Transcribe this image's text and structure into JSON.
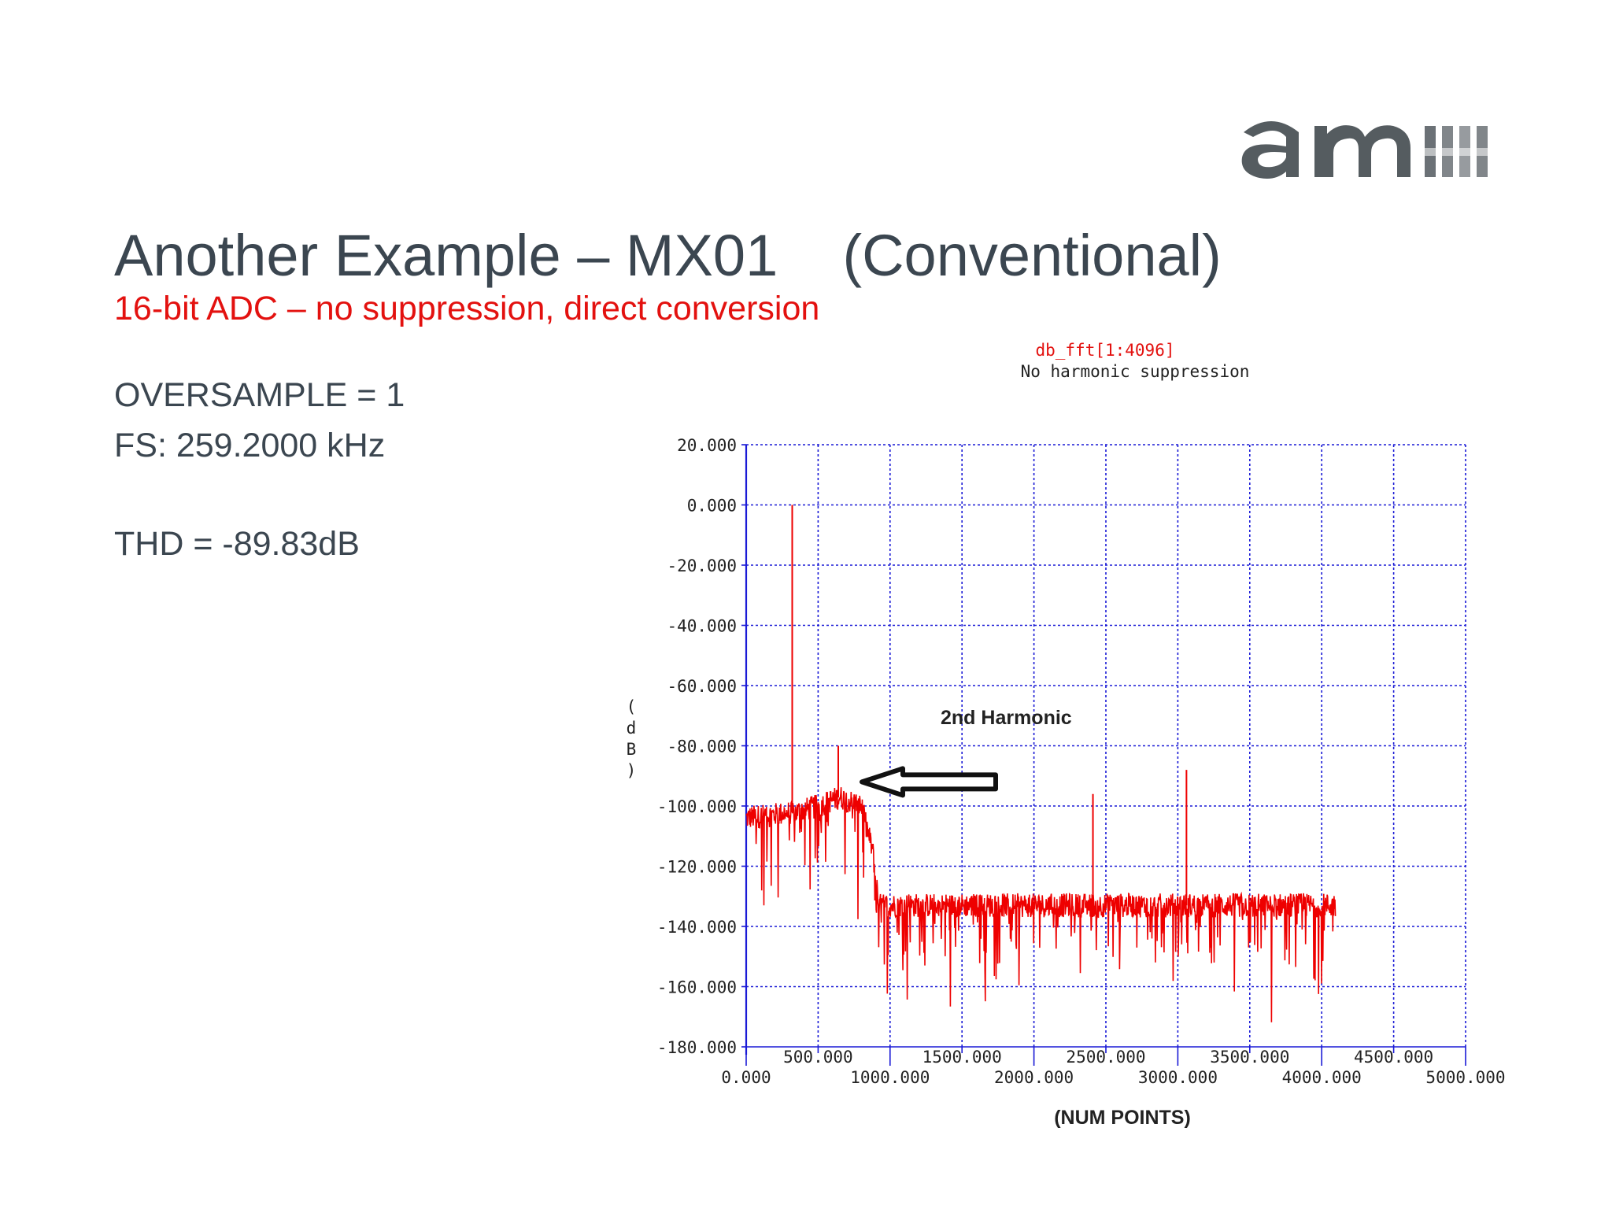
{
  "slide": {
    "title": "Another Example – MX01    (Conventional)",
    "subtitle": "16-bit ADC – no suppression, direct conversion",
    "params": [
      "OVERSAMPLE = 1",
      "FS: 259.2000 kHz"
    ],
    "thd": "THD = -89.83dB",
    "logo": "ams"
  },
  "colors": {
    "title": "#3b4650",
    "accent": "#e3110f",
    "grid": "#1a1ad6",
    "trace": "#ee0000",
    "logo": "#555c60"
  },
  "chart_data": {
    "type": "line",
    "title": "db_fft[1:4096]",
    "subtitle": "No harmonic suppression",
    "ylabel": "(dB)",
    "xlabel": "(NUM POINTS)",
    "xlim": [
      0,
      5000
    ],
    "ylim": [
      -180,
      20
    ],
    "x_ticks_lower": [
      "0.000",
      "1000.000",
      "2000.000",
      "3000.000",
      "4000.000",
      "5000.000"
    ],
    "x_ticks_upper": [
      "500.000",
      "1500.000",
      "2500.000",
      "3500.000",
      "4500.000"
    ],
    "y_ticks": [
      "20.000",
      "0.000",
      "-20.000",
      "-40.000",
      "-60.000",
      "-80.000",
      "-100.000",
      "-120.000",
      "-140.000",
      "-160.000",
      "-180.000"
    ],
    "grid": true,
    "series": [
      {
        "name": "",
        "x_range": [
          0,
          4096
        ],
        "floor_level_db": [
          {
            "x": 0,
            "y": -104
          },
          {
            "x": 350,
            "y": -102
          },
          {
            "x": 500,
            "y": -100
          },
          {
            "x": 650,
            "y": -97
          },
          {
            "x": 800,
            "y": -100
          },
          {
            "x": 880,
            "y": -115
          },
          {
            "x": 920,
            "y": -133
          },
          {
            "x": 4096,
            "y": -133
          }
        ],
        "spikes": [
          {
            "x": 320,
            "y": 0
          },
          {
            "x": 640,
            "y": -80
          },
          {
            "x": 2410,
            "y": -96
          },
          {
            "x": 3060,
            "y": -88
          }
        ]
      }
    ],
    "annotations": [
      {
        "text": "2nd Harmonic",
        "x": 640,
        "y": -82
      }
    ]
  }
}
